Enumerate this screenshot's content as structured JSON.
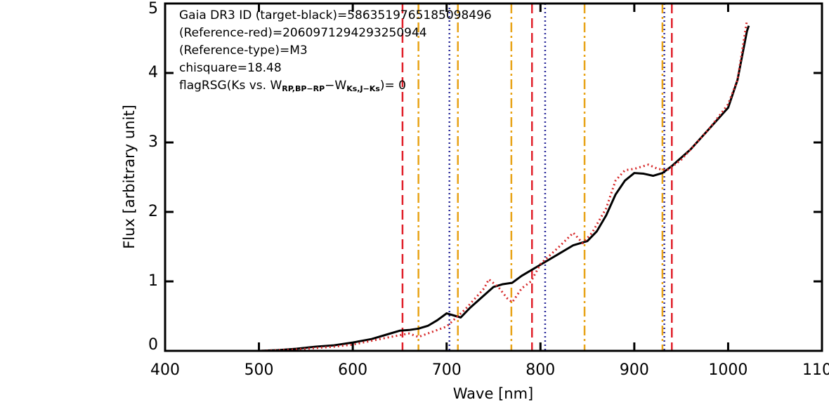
{
  "chart_data": {
    "type": "line",
    "xlabel": "Wave [nm]",
    "ylabel": "Flux [arbitrary unit]",
    "xlim": [
      400,
      1100
    ],
    "ylim": [
      0,
      5
    ],
    "xticks": [
      400,
      500,
      600,
      700,
      800,
      900,
      1000,
      1100
    ],
    "yticks": [
      0,
      1,
      2,
      3,
      4,
      5
    ],
    "annotations": [
      "Gaia DR3 ID (target-black)=5863519765185098496",
      "(Reference-red)=2060971294293250944",
      "(Reference-type)=M3",
      "chisquare=18.48"
    ],
    "flag_label": [
      "flagRSG(Ks vs. W",
      "RP,BP−RP",
      "−W",
      "Ks,J−Ks",
      ")= 0"
    ],
    "vlines": [
      {
        "color": "#e0202a",
        "dash": "dashed",
        "x": [
          653,
          791,
          940
        ]
      },
      {
        "color": "#e8a317",
        "dash": "dashdot",
        "x": [
          670,
          712,
          769,
          847,
          930
        ]
      },
      {
        "color": "#2a2a9a",
        "dash": "dotted",
        "x": [
          703,
          805,
          932
        ]
      }
    ],
    "series": [
      {
        "color": "#000000",
        "dash": "solid",
        "x": [
          400,
          500,
          520,
          540,
          560,
          580,
          600,
          620,
          640,
          650,
          660,
          670,
          680,
          690,
          700,
          710,
          715,
          725,
          740,
          750,
          760,
          770,
          780,
          790,
          800,
          820,
          835,
          850,
          860,
          870,
          880,
          890,
          900,
          910,
          920,
          930,
          940,
          960,
          980,
          1000,
          1010,
          1020,
          1022
        ],
        "values": [
          0,
          0,
          0.01,
          0.03,
          0.06,
          0.08,
          0.12,
          0.17,
          0.25,
          0.29,
          0.3,
          0.32,
          0.36,
          0.44,
          0.54,
          0.5,
          0.48,
          0.62,
          0.8,
          0.92,
          0.96,
          0.98,
          1.08,
          1.16,
          1.24,
          1.4,
          1.52,
          1.58,
          1.72,
          1.95,
          2.25,
          2.45,
          2.56,
          2.55,
          2.52,
          2.56,
          2.66,
          2.9,
          3.2,
          3.5,
          3.9,
          4.6,
          4.68
        ]
      },
      {
        "color": "#d62728",
        "dash": "dotted",
        "x": [
          400,
          500,
          540,
          580,
          600,
          640,
          660,
          670,
          680,
          700,
          720,
          740,
          745,
          755,
          765,
          770,
          780,
          790,
          800,
          820,
          835,
          845,
          855,
          870,
          880,
          890,
          900,
          915,
          925,
          935,
          950,
          980,
          1000,
          1010,
          1020
        ],
        "values": [
          0,
          0,
          0.02,
          0.06,
          0.09,
          0.2,
          0.25,
          0.2,
          0.25,
          0.35,
          0.6,
          0.9,
          1.03,
          0.92,
          0.75,
          0.7,
          0.9,
          1.0,
          1.25,
          1.5,
          1.7,
          1.55,
          1.7,
          2.05,
          2.45,
          2.6,
          2.62,
          2.68,
          2.62,
          2.6,
          2.75,
          3.2,
          3.55,
          3.9,
          4.75
        ]
      }
    ]
  }
}
